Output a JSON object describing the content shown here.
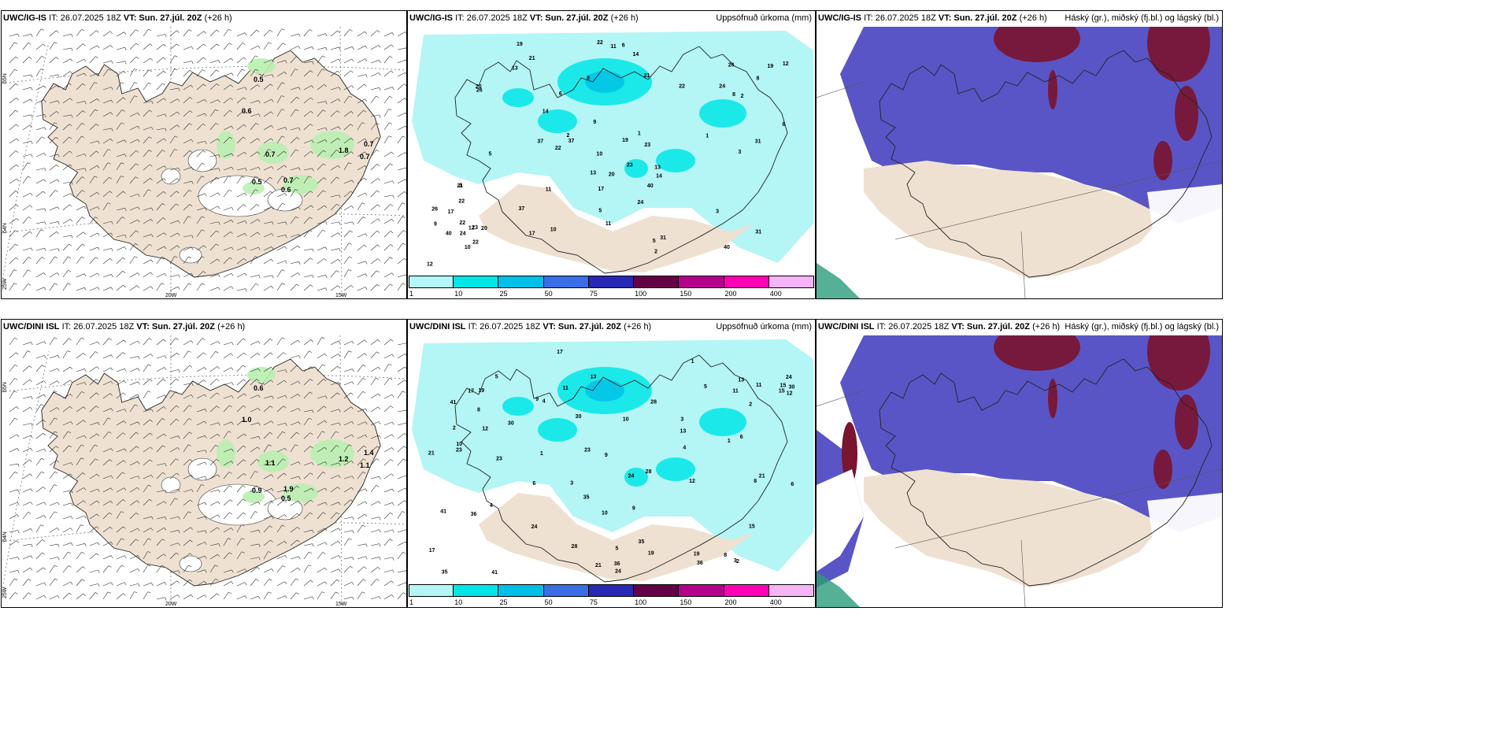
{
  "rows": [
    {
      "model": "UWC/IG-IS",
      "init": "IT: 26.07.2025 18Z",
      "valid_prefix": "VT:",
      "valid": "Sun. 27.júl. 20Z",
      "lead": "(+26 h)",
      "wind_labels": [
        "0.5",
        "0.6",
        "0.7",
        "1.8",
        "0.7",
        "0.7",
        "0.5",
        "0.7",
        "0.6"
      ],
      "precip_labels": [
        "13",
        "31",
        "37",
        "40",
        "22",
        "26",
        "23",
        "17",
        "11",
        "19",
        "24",
        "21",
        "20",
        "12",
        "10",
        "14",
        "22",
        "8",
        "6",
        "5",
        "3",
        "2",
        "1",
        "9"
      ]
    },
    {
      "model": "UWC/DINI ISL",
      "init": "IT: 26.07.2025 18Z",
      "valid_prefix": "VT:",
      "valid": "Sun. 27.júl. 20Z",
      "lead": "(+26 h)",
      "wind_labels": [
        "0.6",
        "1.0",
        "1.1",
        "1.2",
        "1.4",
        "1.1",
        "0.9",
        "1.9",
        "0.5"
      ],
      "precip_labels": [
        "24",
        "21",
        "17",
        "36",
        "12",
        "30",
        "28",
        "41",
        "35",
        "19",
        "23",
        "15",
        "13",
        "10",
        "8",
        "6",
        "5",
        "4",
        "3",
        "2",
        "1",
        "9",
        "11"
      ]
    }
  ],
  "precip_title": "Uppsöfnuð úrkoma (mm)",
  "cloud_title": "Háský (gr.), miðský (fj.bl.) og lágský (bl.)",
  "colorbar": {
    "ticks": [
      "1",
      "10",
      "25",
      "50",
      "75",
      "100",
      "150",
      "200",
      "400"
    ],
    "colors": [
      "#b4f5f5",
      "#00e6e6",
      "#00bfe6",
      "#3a6ee6",
      "#2828b4",
      "#640046",
      "#b4008c",
      "#ff00b4",
      "#f5b4f5"
    ]
  },
  "grid_labels": {
    "lat_65": "65N",
    "lat_64": "64N",
    "lon_25": "25W",
    "lon_20": "20W",
    "lon_15": "15W"
  },
  "colors": {
    "land": "#efe1d2",
    "snow": "#ffffff",
    "light_precip": "#b4f5f5",
    "high_cloud": "#7a1530",
    "mid_cloud": "#5a55c6",
    "low_cloud": "#ffffff",
    "light_green": "#b9efb0"
  }
}
